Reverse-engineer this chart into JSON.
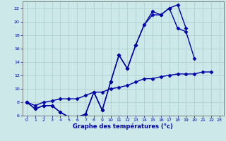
{
  "xlabel": "Graphe des températures (°c)",
  "background_color": "#cce8e8",
  "grid_color": "#aacccc",
  "line_color": "#0000aa",
  "xlim": [
    -0.5,
    23.5
  ],
  "ylim": [
    6,
    23
  ],
  "xticks": [
    0,
    1,
    2,
    3,
    4,
    5,
    6,
    7,
    8,
    9,
    10,
    11,
    12,
    13,
    14,
    15,
    16,
    17,
    18,
    19,
    20,
    21,
    22,
    23
  ],
  "yticks": [
    6,
    8,
    10,
    12,
    14,
    16,
    18,
    20,
    22
  ],
  "line1_x": [
    0,
    1,
    2,
    3,
    4,
    5,
    6,
    7,
    8,
    9,
    10,
    11,
    12,
    13,
    14,
    15,
    16,
    17,
    18,
    19
  ],
  "line1_y": [
    8.0,
    7.0,
    7.5,
    7.5,
    6.5,
    5.8,
    5.8,
    6.2,
    9.5,
    6.8,
    11.0,
    15.0,
    13.0,
    16.5,
    19.5,
    21.5,
    21.0,
    22.0,
    22.5,
    19.0
  ],
  "line2_x": [
    0,
    1,
    2,
    3,
    4,
    5,
    6,
    7,
    8,
    9,
    10,
    11,
    12,
    13,
    14,
    15,
    16,
    17,
    18,
    19,
    20
  ],
  "line2_y": [
    8.0,
    7.0,
    7.5,
    7.5,
    6.5,
    5.8,
    5.8,
    6.2,
    9.5,
    6.8,
    11.0,
    15.0,
    13.0,
    16.5,
    19.5,
    21.0,
    21.0,
    22.0,
    19.0,
    18.5,
    14.5
  ],
  "line3_x": [
    0,
    1,
    2,
    3,
    4,
    5,
    6,
    7,
    8,
    9,
    10,
    11,
    12,
    13,
    14,
    15,
    16,
    17,
    18,
    19,
    20,
    21,
    22
  ],
  "line3_y": [
    8.0,
    7.5,
    8.0,
    8.2,
    8.5,
    8.5,
    8.5,
    9.0,
    9.5,
    9.5,
    10.0,
    10.2,
    10.5,
    11.0,
    11.5,
    11.5,
    11.8,
    12.0,
    12.2,
    12.2,
    12.2,
    12.5,
    12.5
  ],
  "marker": "D",
  "markersize": 2.5,
  "linewidth": 1.0
}
